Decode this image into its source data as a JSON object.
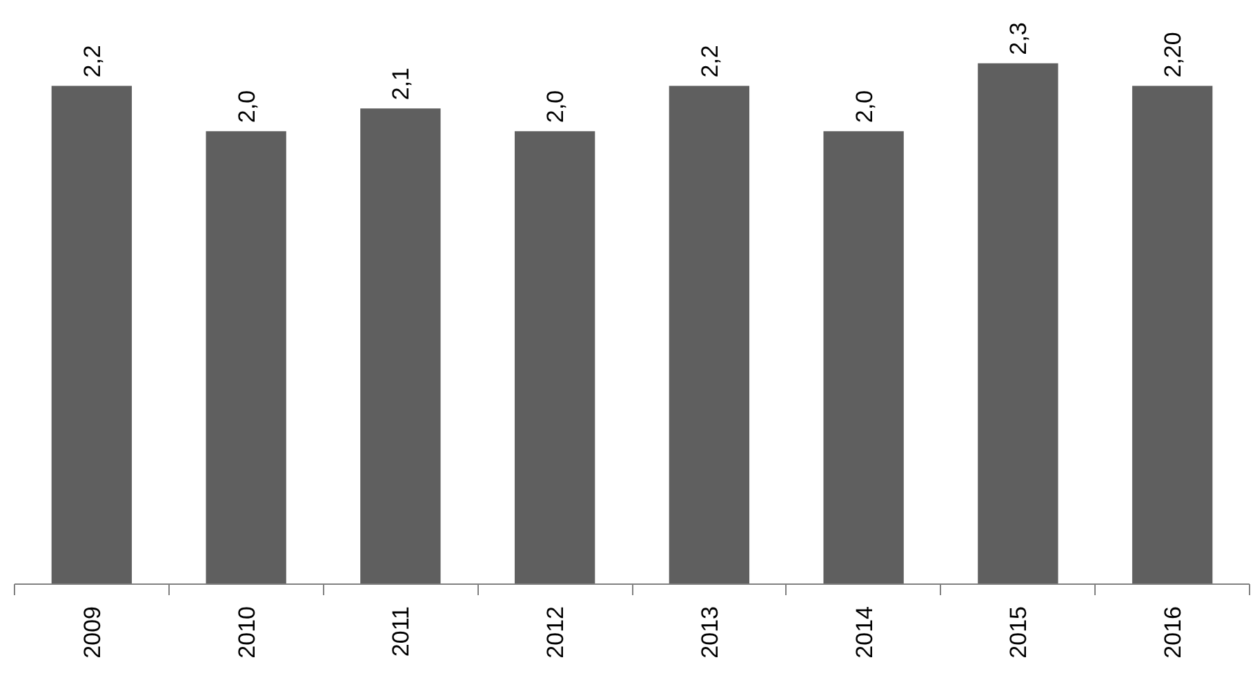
{
  "chart_data": {
    "type": "bar",
    "categories": [
      "2009",
      "2010",
      "2011",
      "2012",
      "2013",
      "2014",
      "2015",
      "2016"
    ],
    "values": [
      2.2,
      2.0,
      2.1,
      2.0,
      2.2,
      2.0,
      2.3,
      2.2
    ],
    "value_labels": [
      "2,2",
      "2,0",
      "2,1",
      "2,0",
      "2,2",
      "2,0",
      "2,3",
      "2,20"
    ],
    "color": "#5f5f5f",
    "tick_labels": "x",
    "grid": false
  }
}
